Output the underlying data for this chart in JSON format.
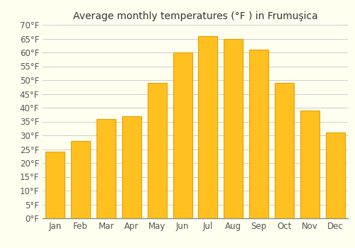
{
  "months": [
    "Jan",
    "Feb",
    "Mar",
    "Apr",
    "May",
    "Jun",
    "Jul",
    "Aug",
    "Sep",
    "Oct",
    "Nov",
    "Dec"
  ],
  "values": [
    24,
    28,
    36,
    37,
    49,
    60,
    66,
    65,
    61,
    49,
    39,
    31
  ],
  "bar_color": "#FFC020",
  "bar_edge_color": "#E8A000",
  "title": "Average monthly temperatures (°F ) in Frumuşica",
  "ylim": [
    0,
    70
  ],
  "yticks": [
    0,
    5,
    10,
    15,
    20,
    25,
    30,
    35,
    40,
    45,
    50,
    55,
    60,
    65,
    70
  ],
  "ytick_labels": [
    "0°F",
    "5°F",
    "10°F",
    "15°F",
    "20°F",
    "25°F",
    "30°F",
    "35°F",
    "40°F",
    "45°F",
    "50°F",
    "55°F",
    "60°F",
    "65°F",
    "70°F"
  ],
  "title_fontsize": 10,
  "tick_fontsize": 8.5,
  "background_color": "#FFFFF0",
  "plot_bg_color": "#FFFFF0",
  "grid_color": "#cccccc",
  "bar_width": 0.75
}
